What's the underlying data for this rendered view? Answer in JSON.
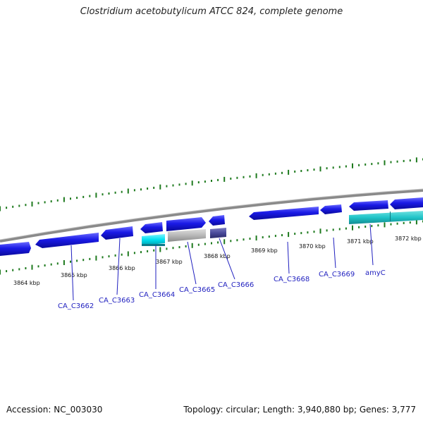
{
  "title": "Clostridium acetobutylicum ATCC 824, complete genome",
  "footer": {
    "accession": "Accession: NC_003030",
    "topology": "Topology: circular; Length: 3,940,880 bp; Genes: 3,777"
  },
  "colors": {
    "gene_blue": "#1a1ae6",
    "gene_cyan": "#00d8e8",
    "gene_teal": "#20c8c8",
    "gene_grey": "#b8b8b8",
    "gene_slate": "#4a4a9a",
    "backbone": "#808080",
    "tick_green": "#1e7a1e",
    "label_blue": "#1f1fbf"
  },
  "scale_ticks": [
    "3864 kbp",
    "3865 kbp",
    "3866 kbp",
    "3867 kbp",
    "3868 kbp",
    "3869 kbp",
    "3870 kbp",
    "3871 kbp",
    "3872 kbp"
  ],
  "gene_labels": [
    "CA_C3662",
    "CA_C3663",
    "CA_C3664",
    "CA_C3665",
    "CA_C3666",
    "CA_C3668",
    "CA_C3669",
    "amyC"
  ]
}
